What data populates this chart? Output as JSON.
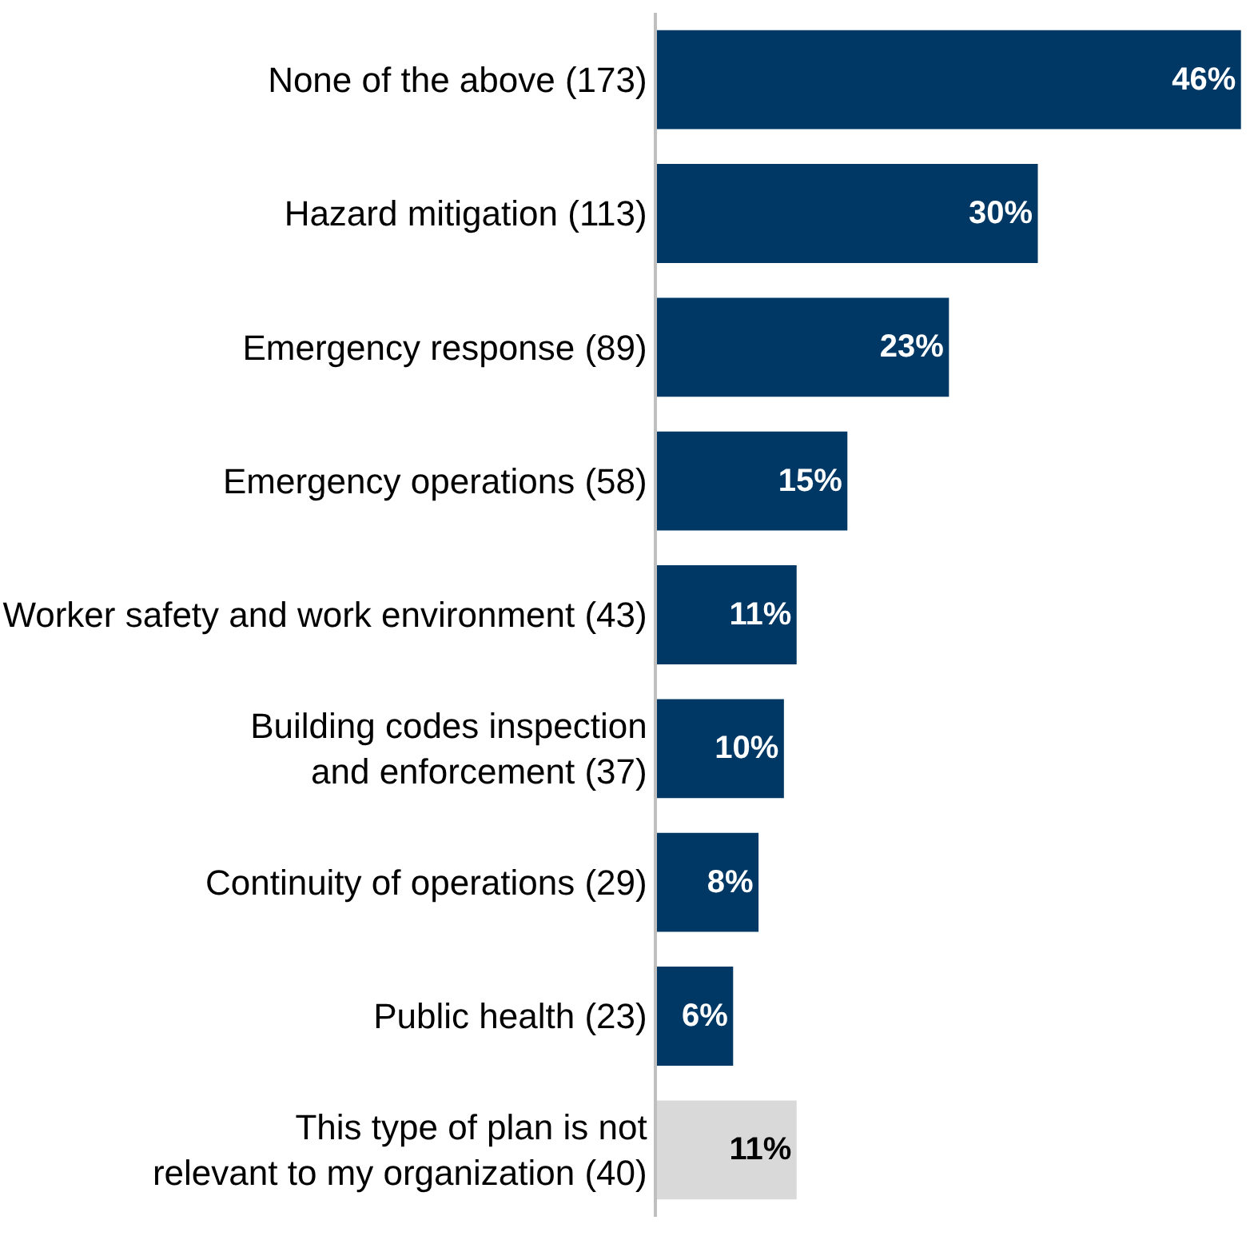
{
  "chart_data": {
    "type": "bar",
    "orientation": "horizontal",
    "categories": [
      "None of the above (173)",
      "Hazard mitigation (113)",
      "Emergency response (89)",
      "Emergency operations (58)",
      "Worker safety and work environment (43)",
      "Building codes inspection and enforcement (37)",
      "Continuity of operations (29)",
      "Public health (23)",
      "This type of plan is not relevant to my organization (40)"
    ],
    "values": [
      46,
      30,
      23,
      15,
      11,
      10,
      8,
      6,
      11
    ],
    "value_labels": [
      "46%",
      "30%",
      "23%",
      "15%",
      "11%",
      "10%",
      "8%",
      "6%",
      "11%"
    ],
    "colors": [
      "#003865",
      "#003865",
      "#003865",
      "#003865",
      "#003865",
      "#003865",
      "#003865",
      "#003865",
      "#d9d9d9"
    ],
    "legend": false
  }
}
